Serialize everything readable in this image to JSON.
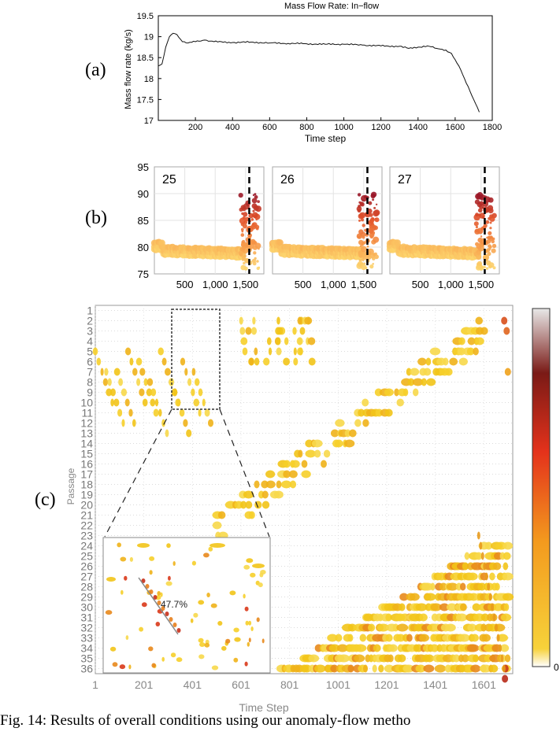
{
  "panels": {
    "a": "(a)",
    "b": "(b)",
    "c": "(c)"
  },
  "chart_a": {
    "type": "line",
    "title": "Mass Flow Rate: In−flow",
    "xlabel": "Time step",
    "ylabel": "Mass flow rate (kg/s)",
    "xlim": [
      0,
      1800
    ],
    "ylim": [
      17,
      19.5
    ],
    "xticks": [
      "200",
      "400",
      "600",
      "800",
      "1000",
      "1200",
      "1400",
      "1600",
      "1800"
    ],
    "yticks": [
      "17",
      "17.5",
      "18",
      "18.5",
      "19",
      "19.5"
    ],
    "x": [
      0,
      20,
      40,
      60,
      80,
      100,
      130,
      160,
      200,
      250,
      300,
      400,
      500,
      600,
      700,
      800,
      900,
      1000,
      1100,
      1200,
      1300,
      1350,
      1400,
      1450,
      1500,
      1550,
      1580,
      1600,
      1620,
      1650,
      1680,
      1710,
      1730
    ],
    "y": [
      18.3,
      18.35,
      18.75,
      19.0,
      19.08,
      19.05,
      18.88,
      18.85,
      18.88,
      18.92,
      18.88,
      18.86,
      18.87,
      18.85,
      18.84,
      18.83,
      18.82,
      18.82,
      18.8,
      18.78,
      18.77,
      18.72,
      18.75,
      18.78,
      18.72,
      18.68,
      18.6,
      18.45,
      18.3,
      18.0,
      17.7,
      17.4,
      17.2
    ]
  },
  "chart_b": {
    "type": "scatter",
    "ylim": [
      75,
      95
    ],
    "yticks": [
      "75",
      "80",
      "85",
      "90",
      "95"
    ],
    "xticks": [
      "500",
      "1,000",
      "1,500"
    ],
    "xlim": [
      0,
      1800
    ],
    "marker_x": 1560,
    "subplots": [
      {
        "label": "25"
      },
      {
        "label": "26"
      },
      {
        "label": "27"
      }
    ]
  },
  "chart_c": {
    "type": "heatmap",
    "xlabel": "Time Step",
    "ylabel": "Passage",
    "xticks": [
      "1",
      "201",
      "401",
      "601",
      "801",
      "1001",
      "1201",
      "1401",
      "1601"
    ],
    "passages": [
      "1",
      "2",
      "3",
      "4",
      "5",
      "6",
      "7",
      "8",
      "9",
      "10",
      "11",
      "12",
      "13",
      "14",
      "15",
      "16",
      "17",
      "18",
      "19",
      "20",
      "21",
      "22",
      "23",
      "24",
      "25",
      "26",
      "27",
      "28",
      "29",
      "30",
      "31",
      "32",
      "33",
      "34",
      "35",
      "36"
    ],
    "colorbar_label": "0",
    "inset_annotation": "47.7%"
  },
  "caption": "Fig. 14: Results of overall conditions using our anomaly-flow metho",
  "colors": {
    "line": "#111111",
    "low": "#f2c418",
    "mid": "#e8401c",
    "high": "#1a1a1a"
  }
}
